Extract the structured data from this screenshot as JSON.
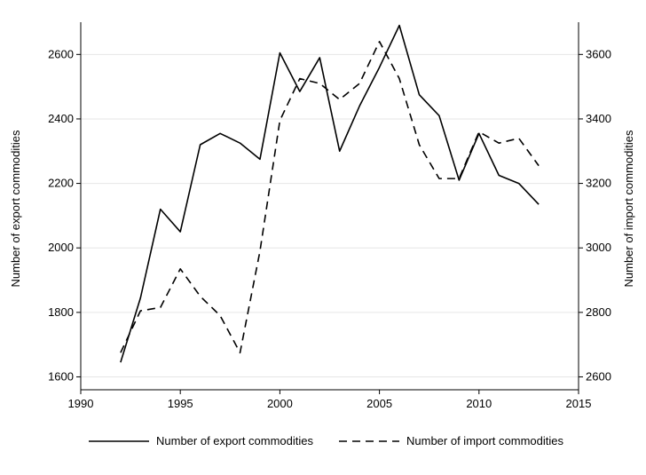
{
  "chart_data": {
    "type": "line",
    "title": "",
    "xlabel": "",
    "ylabel_left": "Number of export commodities",
    "ylabel_right": "Number of import commodities",
    "xlim": [
      1990,
      2015
    ],
    "ylim_left": [
      1560,
      2700
    ],
    "ylim_right": [
      2560,
      3700
    ],
    "x_ticks": [
      1990,
      1995,
      2000,
      2005,
      2010,
      2015
    ],
    "y_left_ticks": [
      1600,
      1800,
      2000,
      2200,
      2400,
      2600
    ],
    "y_right_ticks": [
      2600,
      2800,
      3000,
      3200,
      3400,
      3600
    ],
    "grid": "horizontal",
    "legend_position": "bottom",
    "x": [
      1992,
      1993,
      1994,
      1995,
      1996,
      1997,
      1998,
      1999,
      2000,
      2001,
      2002,
      2003,
      2004,
      2005,
      2006,
      2007,
      2008,
      2009,
      2010,
      2011,
      2012,
      2013
    ],
    "series": [
      {
        "name": "Number of export commodities",
        "axis": "left",
        "style": "solid",
        "values": [
          1645,
          1845,
          2120,
          2050,
          2320,
          2355,
          2325,
          2275,
          2605,
          2485,
          2590,
          2300,
          2440,
          2560,
          2690,
          2475,
          2410,
          2210,
          2355,
          2225,
          2200,
          2135
        ]
      },
      {
        "name": "Number of import commodities",
        "axis": "right",
        "style": "dashed",
        "values": [
          2675,
          2805,
          2815,
          2935,
          2850,
          2790,
          2675,
          2990,
          3395,
          3525,
          3510,
          3460,
          3510,
          3640,
          3525,
          3320,
          3215,
          3215,
          3360,
          3325,
          3340,
          3255
        ]
      }
    ]
  }
}
